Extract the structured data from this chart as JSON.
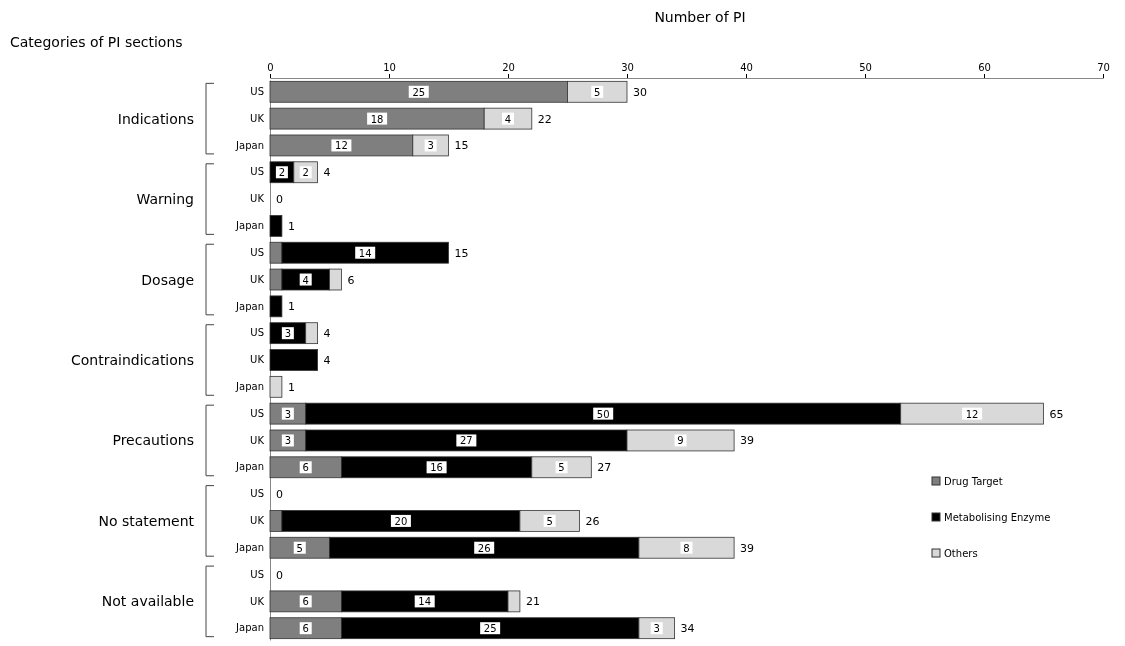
{
  "chart_data": {
    "type": "bar",
    "orientation": "horizontal",
    "stacked": true,
    "xlabel": "Number of PI",
    "ylabel": "Categories of  PI sections",
    "categories": [
      "US",
      "UK",
      "Japan",
      "US",
      "UK",
      "Japan",
      "US",
      "UK",
      "Japan",
      "US",
      "UK",
      "Japan",
      "US",
      "UK",
      "Japan",
      "US",
      "UK",
      "Japan",
      "US",
      "UK",
      "Japan"
    ],
    "annotations": [
      "Indications",
      "Warning",
      "Dosage",
      "Contraindications",
      "Precautions",
      "No statement",
      "Not available"
    ],
    "xlim": [
      0,
      70
    ],
    "xticks": [
      0,
      10,
      20,
      30,
      40,
      50,
      60,
      70
    ],
    "series": [
      {
        "name": "Drug Target",
        "color": "#7f7f7f",
        "values": [
          25,
          18,
          12,
          0,
          0,
          0,
          1,
          1,
          0,
          0,
          0,
          0,
          3,
          3,
          6,
          0,
          1,
          5,
          0,
          6,
          6
        ],
        "value_labels": [
          "25",
          "18",
          "12",
          null,
          null,
          null,
          null,
          null,
          null,
          null,
          null,
          null,
          "3",
          "3",
          "6",
          null,
          null,
          "5",
          null,
          "6",
          "6"
        ]
      },
      {
        "name": "Metabolising Enzyme",
        "color": "#000000",
        "values": [
          0,
          0,
          0,
          2,
          0,
          1,
          14,
          4,
          1,
          3,
          4,
          0,
          50,
          27,
          16,
          0,
          20,
          26,
          0,
          14,
          25
        ],
        "value_labels": [
          null,
          null,
          null,
          "2",
          null,
          null,
          "14",
          "4",
          null,
          "3",
          null,
          null,
          "50",
          "27",
          "16",
          null,
          "20",
          "26",
          null,
          "14",
          "25"
        ]
      },
      {
        "name": "Others",
        "color": "#d9d9d9",
        "values": [
          5,
          4,
          3,
          2,
          0,
          0,
          0,
          1,
          0,
          1,
          0,
          1,
          12,
          9,
          5,
          0,
          5,
          8,
          0,
          1,
          3
        ],
        "value_labels": [
          "5",
          "4",
          "3",
          "2",
          null,
          null,
          null,
          null,
          null,
          null,
          null,
          null,
          "12",
          "9",
          "5",
          null,
          "5",
          "8",
          null,
          null,
          "3"
        ]
      }
    ],
    "totals": [
      "30",
      "22",
      "15",
      "4",
      "0",
      "1",
      "15",
      "6",
      "1",
      "4",
      "4",
      "1",
      "65",
      "39",
      "27",
      "0",
      "26",
      "39",
      "0",
      "21",
      "34"
    ],
    "legend": "bottom right"
  }
}
